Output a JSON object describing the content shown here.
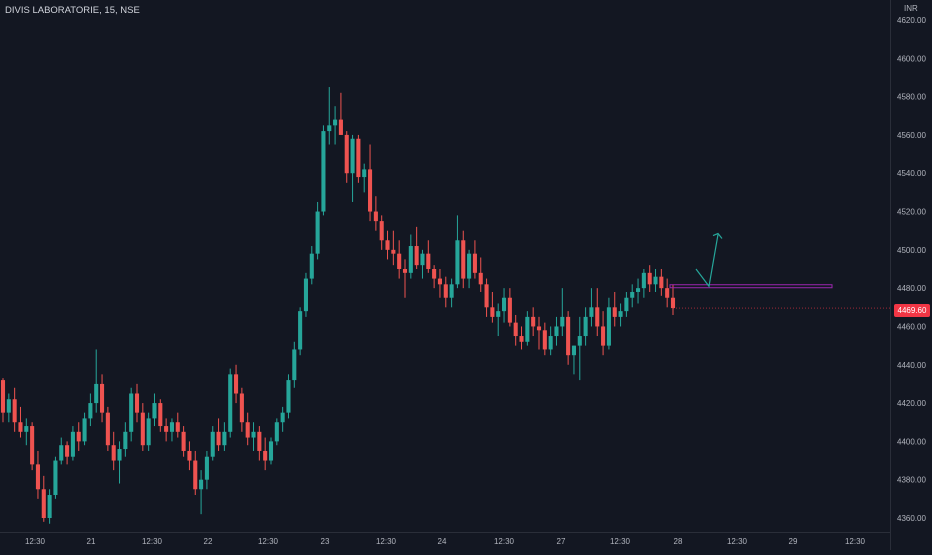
{
  "symbol": {
    "title": "DIVIS LABORATORIE, 15, NSE",
    "currency": "INR"
  },
  "last_price_label": "4469.60",
  "colors": {
    "background": "#131722",
    "up": "#26a69a",
    "down": "#ef5350",
    "text": "#b2b5be",
    "grid": "#1b1f2b",
    "drawing_line": "#9c27b0",
    "drawing_arrow": "#26a69a",
    "price_badge": "#f23645"
  },
  "chart_data": {
    "type": "candlestick",
    "title": "DIVIS LABORATORIE, 15, NSE",
    "ylabel": "INR",
    "ylim": [
      4352,
      4630
    ],
    "grid": false,
    "x_tick_labels": [
      "12:30",
      "21",
      "12:30",
      "22",
      "12:30",
      "23",
      "12:30",
      "24",
      "12:30",
      "27",
      "12:30",
      "28",
      "12:30",
      "29",
      "12:30"
    ],
    "y_tick_labels": [
      "4360.00",
      "4380.00",
      "4400.00",
      "4420.00",
      "4440.00",
      "4460.00",
      "4480.00",
      "4500.00",
      "4520.00",
      "4540.00",
      "4560.00",
      "4580.00",
      "4600.00",
      "4620.00"
    ],
    "y_ticks": [
      4360,
      4380,
      4400,
      4420,
      4440,
      4460,
      4480,
      4500,
      4520,
      4540,
      4560,
      4580,
      4600,
      4620
    ],
    "candles": [
      [
        4432,
        4433,
        4410,
        4415
      ],
      [
        4415,
        4425,
        4410,
        4422
      ],
      [
        4422,
        4428,
        4405,
        4410
      ],
      [
        4410,
        4418,
        4402,
        4405
      ],
      [
        4405,
        4412,
        4398,
        4408
      ],
      [
        4408,
        4410,
        4385,
        4388
      ],
      [
        4388,
        4395,
        4370,
        4375
      ],
      [
        4375,
        4382,
        4358,
        4360
      ],
      [
        4360,
        4375,
        4357,
        4372
      ],
      [
        4372,
        4392,
        4370,
        4390
      ],
      [
        4390,
        4402,
        4388,
        4398
      ],
      [
        4398,
        4400,
        4388,
        4392
      ],
      [
        4392,
        4408,
        4390,
        4405
      ],
      [
        4405,
        4410,
        4395,
        4400
      ],
      [
        4400,
        4415,
        4398,
        4412
      ],
      [
        4412,
        4425,
        4408,
        4420
      ],
      [
        4420,
        4448,
        4415,
        4430
      ],
      [
        4430,
        4435,
        4410,
        4415
      ],
      [
        4415,
        4418,
        4395,
        4398
      ],
      [
        4398,
        4405,
        4385,
        4390
      ],
      [
        4390,
        4400,
        4378,
        4396
      ],
      [
        4396,
        4410,
        4392,
        4405
      ],
      [
        4405,
        4428,
        4400,
        4425
      ],
      [
        4425,
        4430,
        4410,
        4415
      ],
      [
        4415,
        4420,
        4395,
        4398
      ],
      [
        4398,
        4415,
        4395,
        4412
      ],
      [
        4412,
        4425,
        4408,
        4420
      ],
      [
        4420,
        4422,
        4405,
        4408
      ],
      [
        4408,
        4412,
        4400,
        4405
      ],
      [
        4405,
        4412,
        4400,
        4410
      ],
      [
        4410,
        4415,
        4402,
        4405
      ],
      [
        4405,
        4408,
        4392,
        4395
      ],
      [
        4395,
        4400,
        4385,
        4390
      ],
      [
        4390,
        4395,
        4372,
        4375
      ],
      [
        4375,
        4385,
        4362,
        4380
      ],
      [
        4380,
        4395,
        4375,
        4392
      ],
      [
        4392,
        4408,
        4390,
        4405
      ],
      [
        4405,
        4412,
        4395,
        4398
      ],
      [
        4398,
        4410,
        4395,
        4405
      ],
      [
        4405,
        4438,
        4402,
        4435
      ],
      [
        4435,
        4440,
        4420,
        4425
      ],
      [
        4425,
        4428,
        4405,
        4410
      ],
      [
        4410,
        4415,
        4398,
        4402
      ],
      [
        4402,
        4410,
        4395,
        4405
      ],
      [
        4405,
        4408,
        4390,
        4395
      ],
      [
        4395,
        4402,
        4385,
        4390
      ],
      [
        4390,
        4402,
        4388,
        4400
      ],
      [
        4400,
        4412,
        4398,
        4410
      ],
      [
        4410,
        4418,
        4405,
        4415
      ],
      [
        4415,
        4435,
        4412,
        4432
      ],
      [
        4432,
        4452,
        4428,
        4448
      ],
      [
        4448,
        4470,
        4445,
        4468
      ],
      [
        4468,
        4488,
        4465,
        4485
      ],
      [
        4485,
        4502,
        4482,
        4498
      ],
      [
        4498,
        4525,
        4495,
        4520
      ],
      [
        4520,
        4565,
        4518,
        4562
      ],
      [
        4562,
        4585,
        4555,
        4565
      ],
      [
        4565,
        4575,
        4555,
        4568
      ],
      [
        4568,
        4582,
        4560,
        4560
      ],
      [
        4560,
        4562,
        4535,
        4540
      ],
      [
        4540,
        4560,
        4525,
        4558
      ],
      [
        4558,
        4560,
        4535,
        4538
      ],
      [
        4538,
        4545,
        4530,
        4542
      ],
      [
        4542,
        4555,
        4515,
        4520
      ],
      [
        4520,
        4528,
        4510,
        4515
      ],
      [
        4515,
        4518,
        4500,
        4505
      ],
      [
        4505,
        4510,
        4495,
        4500
      ],
      [
        4500,
        4510,
        4492,
        4498
      ],
      [
        4498,
        4505,
        4485,
        4490
      ],
      [
        4490,
        4495,
        4475,
        4488
      ],
      [
        4488,
        4508,
        4485,
        4502
      ],
      [
        4502,
        4512,
        4490,
        4492
      ],
      [
        4492,
        4500,
        4485,
        4498
      ],
      [
        4498,
        4505,
        4488,
        4490
      ],
      [
        4490,
        4492,
        4480,
        4485
      ],
      [
        4485,
        4490,
        4475,
        4482
      ],
      [
        4482,
        4486,
        4470,
        4475
      ],
      [
        4475,
        4485,
        4470,
        4482
      ],
      [
        4482,
        4518,
        4480,
        4505
      ],
      [
        4505,
        4510,
        4480,
        4485
      ],
      [
        4485,
        4500,
        4480,
        4498
      ],
      [
        4498,
        4505,
        4485,
        4488
      ],
      [
        4488,
        4496,
        4478,
        4482
      ],
      [
        4482,
        4485,
        4465,
        4470
      ],
      [
        4470,
        4478,
        4462,
        4465
      ],
      [
        4465,
        4472,
        4455,
        4468
      ],
      [
        4468,
        4480,
        4462,
        4475
      ],
      [
        4475,
        4480,
        4460,
        4462
      ],
      [
        4462,
        4466,
        4450,
        4455
      ],
      [
        4455,
        4460,
        4448,
        4452
      ],
      [
        4452,
        4468,
        4450,
        4465
      ],
      [
        4465,
        4470,
        4455,
        4460
      ],
      [
        4460,
        4465,
        4448,
        4458
      ],
      [
        4458,
        4462,
        4445,
        4448
      ],
      [
        4448,
        4460,
        4445,
        4455
      ],
      [
        4455,
        4465,
        4450,
        4460
      ],
      [
        4460,
        4480,
        4455,
        4465
      ],
      [
        4465,
        4468,
        4440,
        4445
      ],
      [
        4445,
        4450,
        4435,
        4450
      ],
      [
        4450,
        4465,
        4432,
        4455
      ],
      [
        4455,
        4470,
        4450,
        4465
      ],
      [
        4465,
        4480,
        4460,
        4470
      ],
      [
        4470,
        4480,
        4455,
        4460
      ],
      [
        4460,
        4468,
        4445,
        4450
      ],
      [
        4450,
        4475,
        4448,
        4470
      ],
      [
        4470,
        4478,
        4460,
        4465
      ],
      [
        4465,
        4472,
        4460,
        4468
      ],
      [
        4468,
        4478,
        4465,
        4475
      ],
      [
        4475,
        4482,
        4470,
        4478
      ],
      [
        4478,
        4485,
        4472,
        4480
      ],
      [
        4480,
        4490,
        4475,
        4488
      ],
      [
        4488,
        4492,
        4478,
        4482
      ],
      [
        4482,
        4490,
        4478,
        4486
      ],
      [
        4486,
        4490,
        4476,
        4480
      ],
      [
        4480,
        4485,
        4470,
        4475
      ],
      [
        4475,
        4482,
        4466,
        4469.6
      ]
    ],
    "horizontal_line": {
      "price": 4481
    },
    "projection_arrow": {
      "points": [
        [
          4490,
          4488
        ],
        [
          4480,
          4480
        ],
        [
          4510,
          4504
        ]
      ]
    },
    "last_price": 4469.6
  }
}
